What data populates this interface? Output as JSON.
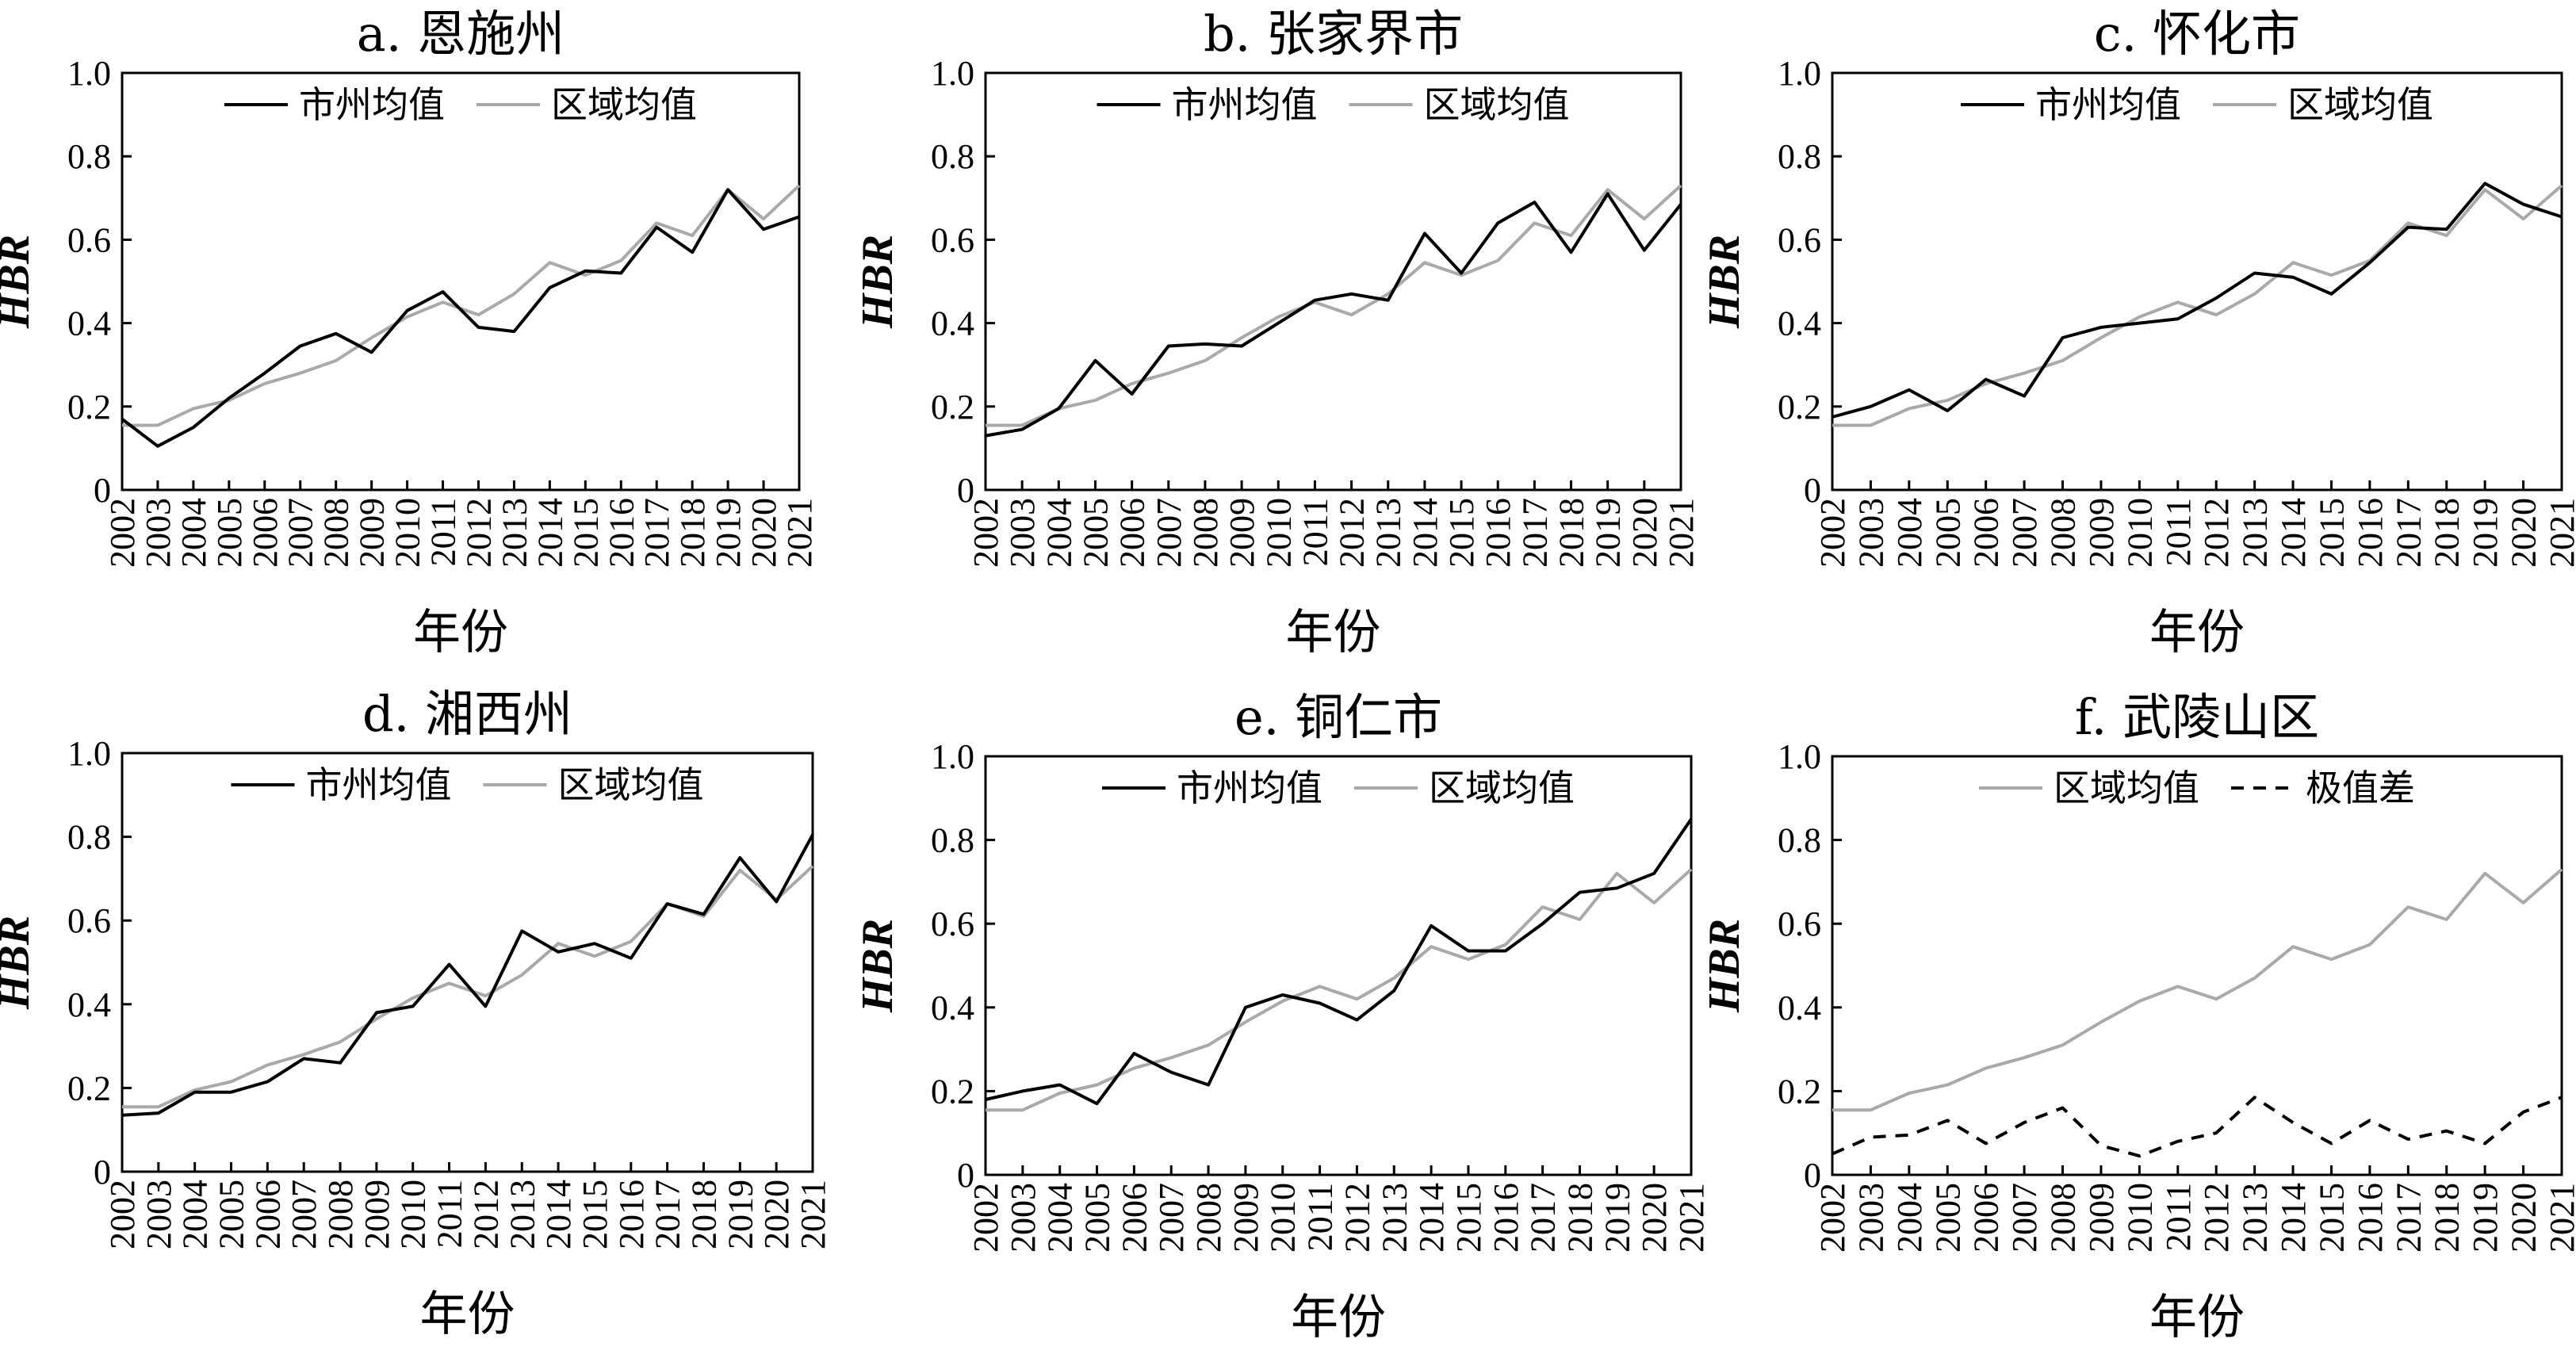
{
  "colors": {
    "city": "#000000",
    "region": "#a9a9a9",
    "range": "#000000",
    "axis": "#000000"
  },
  "years": [
    "2002",
    "2003",
    "2004",
    "2005",
    "2006",
    "2007",
    "2008",
    "2009",
    "2010",
    "2011",
    "2012",
    "2013",
    "2014",
    "2015",
    "2016",
    "2017",
    "2018",
    "2019",
    "2020",
    "2021"
  ],
  "chart_data": [
    {
      "type": "line",
      "title": "a. 恩施州",
      "xlabel": "年份",
      "ylabel": "HBR",
      "ylim": [
        0,
        1
      ],
      "yticks": [
        "0",
        "0.2",
        "0.4",
        "0.6",
        "0.8",
        "1.0"
      ],
      "legend": "top",
      "series": [
        {
          "name": "市州均值",
          "style": "solid",
          "color": "#000000",
          "values": [
            0.17,
            0.105,
            0.15,
            0.22,
            0.28,
            0.345,
            0.375,
            0.33,
            0.43,
            0.475,
            0.39,
            0.38,
            0.485,
            0.525,
            0.52,
            0.63,
            0.57,
            0.72,
            0.625,
            0.655
          ]
        },
        {
          "name": "区域均值",
          "style": "solid",
          "color": "#a9a9a9",
          "values": [
            0.155,
            0.155,
            0.195,
            0.215,
            0.255,
            0.28,
            0.31,
            0.365,
            0.415,
            0.45,
            0.42,
            0.47,
            0.545,
            0.515,
            0.55,
            0.64,
            0.61,
            0.72,
            0.65,
            0.73
          ]
        }
      ]
    },
    {
      "type": "line",
      "title": "b. 张家界市",
      "xlabel": "年份",
      "ylabel": "HBR",
      "ylim": [
        0,
        1
      ],
      "yticks": [
        "0",
        "0.2",
        "0.4",
        "0.6",
        "0.8",
        "1.0"
      ],
      "legend": "top",
      "series": [
        {
          "name": "市州均值",
          "style": "solid",
          "color": "#000000",
          "values": [
            0.13,
            0.145,
            0.195,
            0.31,
            0.23,
            0.345,
            0.35,
            0.345,
            0.4,
            0.455,
            0.47,
            0.455,
            0.615,
            0.52,
            0.64,
            0.69,
            0.57,
            0.71,
            0.575,
            0.685
          ]
        },
        {
          "name": "区域均值",
          "style": "solid",
          "color": "#a9a9a9",
          "values": [
            0.155,
            0.155,
            0.195,
            0.215,
            0.255,
            0.28,
            0.31,
            0.365,
            0.415,
            0.45,
            0.42,
            0.47,
            0.545,
            0.515,
            0.55,
            0.64,
            0.61,
            0.72,
            0.65,
            0.73
          ]
        }
      ]
    },
    {
      "type": "line",
      "title": "c. 怀化市",
      "xlabel": "年份",
      "ylabel": "HBR",
      "ylim": [
        0,
        1
      ],
      "yticks": [
        "0",
        "0.2",
        "0.4",
        "0.6",
        "0.8",
        "1.0"
      ],
      "legend": "top",
      "series": [
        {
          "name": "市州均值",
          "style": "solid",
          "color": "#000000",
          "values": [
            0.175,
            0.2,
            0.24,
            0.19,
            0.265,
            0.225,
            0.365,
            0.39,
            0.4,
            0.41,
            0.46,
            0.52,
            0.51,
            0.47,
            0.545,
            0.63,
            0.625,
            0.735,
            0.685,
            0.655
          ]
        },
        {
          "name": "区域均值",
          "style": "solid",
          "color": "#a9a9a9",
          "values": [
            0.155,
            0.155,
            0.195,
            0.215,
            0.255,
            0.28,
            0.31,
            0.365,
            0.415,
            0.45,
            0.42,
            0.47,
            0.545,
            0.515,
            0.55,
            0.64,
            0.61,
            0.72,
            0.65,
            0.73
          ]
        }
      ]
    },
    {
      "type": "line",
      "title": "d. 湘西州",
      "xlabel": "年份",
      "ylabel": "HBR",
      "ylim": [
        0,
        1
      ],
      "yticks": [
        "0",
        "0.2",
        "0.4",
        "0.6",
        "0.8",
        "1.0"
      ],
      "legend": "top",
      "series": [
        {
          "name": "市州均值",
          "style": "solid",
          "color": "#000000",
          "values": [
            0.135,
            0.14,
            0.19,
            0.19,
            0.215,
            0.27,
            0.26,
            0.38,
            0.395,
            0.495,
            0.395,
            0.575,
            0.525,
            0.545,
            0.51,
            0.64,
            0.615,
            0.75,
            0.645,
            0.805
          ]
        },
        {
          "name": "区域均值",
          "style": "solid",
          "color": "#a9a9a9",
          "values": [
            0.155,
            0.155,
            0.195,
            0.215,
            0.255,
            0.28,
            0.31,
            0.365,
            0.415,
            0.45,
            0.42,
            0.47,
            0.545,
            0.515,
            0.55,
            0.64,
            0.61,
            0.72,
            0.65,
            0.73
          ]
        }
      ]
    },
    {
      "type": "line",
      "title": "e. 铜仁市",
      "xlabel": "年份",
      "ylabel": "HBR",
      "ylim": [
        0,
        1
      ],
      "yticks": [
        "0",
        "0.2",
        "0.4",
        "0.6",
        "0.8",
        "1.0"
      ],
      "legend": "top",
      "series": [
        {
          "name": "市州均值",
          "style": "solid",
          "color": "#000000",
          "values": [
            0.18,
            0.2,
            0.215,
            0.17,
            0.29,
            0.245,
            0.215,
            0.4,
            0.43,
            0.41,
            0.37,
            0.44,
            0.595,
            0.535,
            0.535,
            0.6,
            0.675,
            0.685,
            0.72,
            0.85
          ]
        },
        {
          "name": "区域均值",
          "style": "solid",
          "color": "#a9a9a9",
          "values": [
            0.155,
            0.155,
            0.195,
            0.215,
            0.255,
            0.28,
            0.31,
            0.365,
            0.415,
            0.45,
            0.42,
            0.47,
            0.545,
            0.515,
            0.55,
            0.64,
            0.61,
            0.72,
            0.65,
            0.73
          ]
        }
      ]
    },
    {
      "type": "line",
      "title": "f. 武陵山区",
      "xlabel": "年份",
      "ylabel": "HBR",
      "ylim": [
        0,
        1
      ],
      "yticks": [
        "0",
        "0.2",
        "0.4",
        "0.6",
        "0.8",
        "1.0"
      ],
      "legend": "top",
      "series": [
        {
          "name": "区域均值",
          "style": "solid",
          "color": "#a9a9a9",
          "values": [
            0.155,
            0.155,
            0.195,
            0.215,
            0.255,
            0.28,
            0.31,
            0.365,
            0.415,
            0.45,
            0.42,
            0.47,
            0.545,
            0.515,
            0.55,
            0.64,
            0.61,
            0.72,
            0.65,
            0.73
          ]
        },
        {
          "name": "极值差",
          "style": "dashed",
          "color": "#000000",
          "values": [
            0.05,
            0.09,
            0.095,
            0.13,
            0.075,
            0.125,
            0.16,
            0.07,
            0.045,
            0.08,
            0.1,
            0.185,
            0.125,
            0.075,
            0.13,
            0.085,
            0.105,
            0.075,
            0.15,
            0.185
          ]
        }
      ]
    }
  ]
}
